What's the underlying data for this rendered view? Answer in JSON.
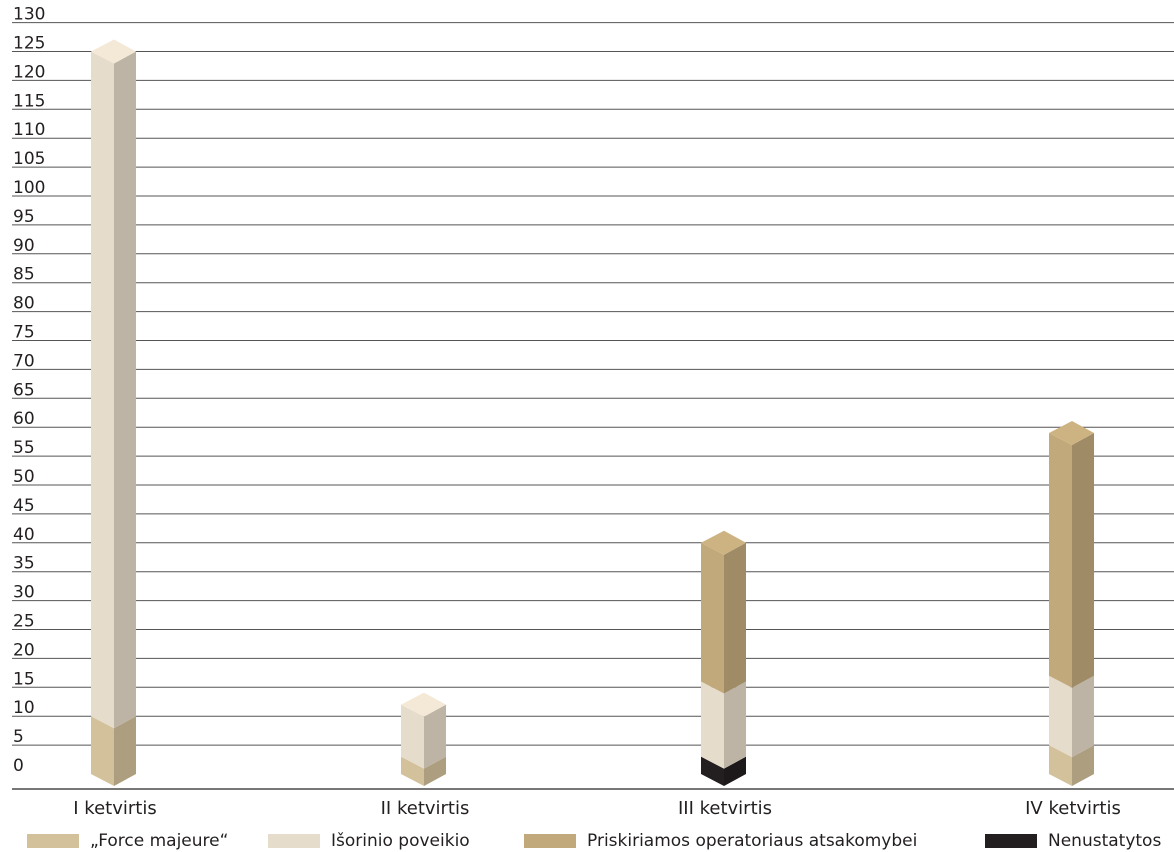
{
  "chart_data": {
    "type": "bar",
    "stacked": true,
    "style": "3d-column",
    "categories": [
      "I ketvirtis",
      "II ketvirtis",
      "III ketvirtis",
      "IV ketvirtis"
    ],
    "series": [
      {
        "name": "Nenustatytos",
        "values": [
          0,
          0,
          3,
          0
        ],
        "color": "#231f20"
      },
      {
        "name": "„Force majeure“",
        "values": [
          10,
          3,
          0,
          5
        ],
        "color": "#d2c19b"
      },
      {
        "name": "Išorinio poveikio",
        "values": [
          115,
          9,
          13,
          12
        ],
        "color": "#e6dccb"
      },
      {
        "name": "Priskiriamos operatoriaus atsakomybei",
        "values": [
          0,
          0,
          24,
          42
        ],
        "color": "#c2a97b"
      }
    ],
    "ylim": [
      0,
      130
    ],
    "yticks": [
      0,
      5,
      10,
      15,
      20,
      25,
      30,
      35,
      40,
      45,
      50,
      55,
      60,
      65,
      70,
      75,
      80,
      85,
      90,
      95,
      100,
      105,
      110,
      115,
      120,
      125,
      130
    ],
    "grid": true,
    "legend_position": "bottom",
    "legend_order": [
      "„Force majeure“",
      "Išorinio poveikio",
      "Priskiriamos operatoriaus atsakomybei",
      "Nenustatytos"
    ]
  }
}
